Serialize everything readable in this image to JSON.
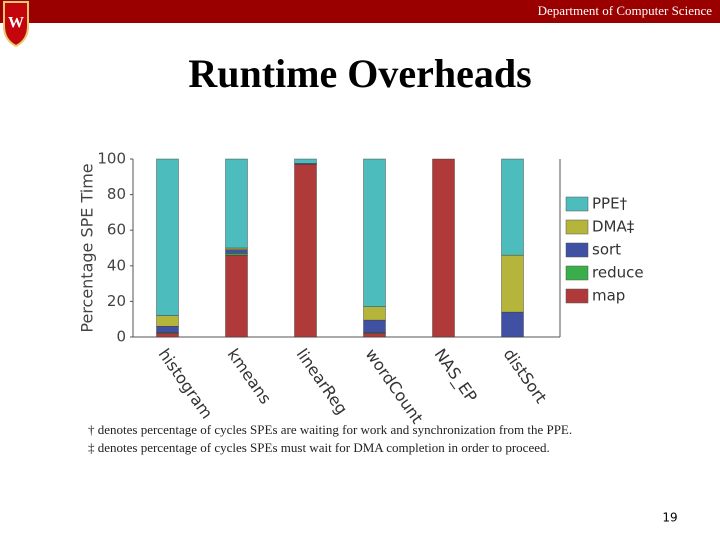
{
  "slide": {
    "header": "Department of Computer Science",
    "title": "Runtime Overheads",
    "footnotes": [
      "† denotes percentage of cycles SPEs are waiting for work and synchronization from the PPE.",
      "‡ denotes percentage of cycles SPEs must wait for DMA completion in order to proceed."
    ],
    "page_number": "19"
  },
  "chart_data": {
    "type": "stacked_bar",
    "ylabel": "Percentage SPE Time",
    "categories": [
      "histogram",
      "kmeans",
      "linearReg",
      "wordCount",
      "NAS_EP",
      "distSort"
    ],
    "series": [
      {
        "name": "map",
        "color": "#b03a3a",
        "values": [
          2,
          46,
          97,
          2,
          100,
          0
        ]
      },
      {
        "name": "reduce",
        "color": "#3aae4a",
        "values": [
          0.5,
          1,
          0,
          0.5,
          0,
          0
        ]
      },
      {
        "name": "sort",
        "color": "#4050a2",
        "values": [
          3.5,
          2,
          0.5,
          7,
          0,
          14
        ]
      },
      {
        "name": "DMA‡",
        "color": "#b5b53c",
        "values": [
          6,
          1,
          0,
          7.5,
          0,
          32
        ]
      },
      {
        "name": "PPE†",
        "color": "#4cbcbc",
        "values": [
          88,
          50,
          2.5,
          83,
          0,
          54
        ]
      }
    ],
    "ylim": [
      0,
      100
    ],
    "yticks": [
      0,
      20,
      40,
      60,
      80,
      100
    ],
    "legend": "right"
  }
}
